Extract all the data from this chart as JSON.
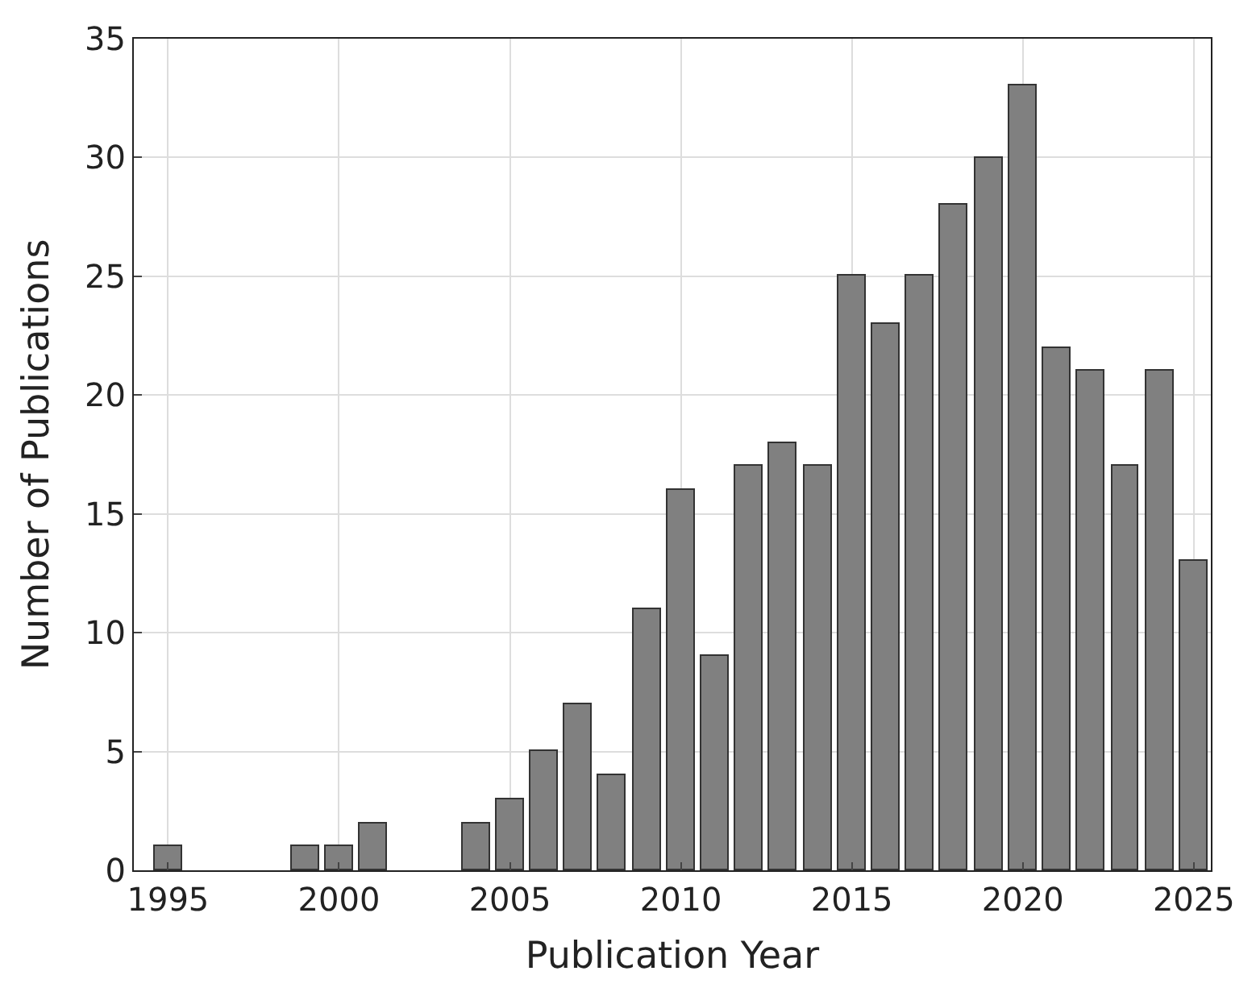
{
  "chart_data": {
    "type": "bar",
    "xlabel": "Publication Year",
    "ylabel": "Number of Publications",
    "x": [
      1995,
      1996,
      1997,
      1998,
      1999,
      2000,
      2001,
      2002,
      2003,
      2004,
      2005,
      2006,
      2007,
      2008,
      2009,
      2010,
      2011,
      2012,
      2013,
      2014,
      2015,
      2016,
      2017,
      2018,
      2019,
      2020,
      2021,
      2022,
      2023,
      2024,
      2025
    ],
    "values": [
      1,
      0,
      0,
      0,
      1,
      1,
      2,
      0,
      0,
      2,
      3,
      5,
      7,
      4,
      11,
      16,
      9,
      17,
      18,
      17,
      25,
      23,
      25,
      28,
      30,
      33,
      22,
      21,
      17,
      21,
      13
    ],
    "color": "#808080",
    "xlim": [
      1994,
      2025.5
    ],
    "xticks": [
      1995,
      2000,
      2005,
      2010,
      2015,
      2020,
      2025
    ],
    "ylim": [
      0,
      35
    ],
    "yticks": [
      0,
      5,
      10,
      15,
      20,
      25,
      30,
      35
    ],
    "grid": true
  }
}
